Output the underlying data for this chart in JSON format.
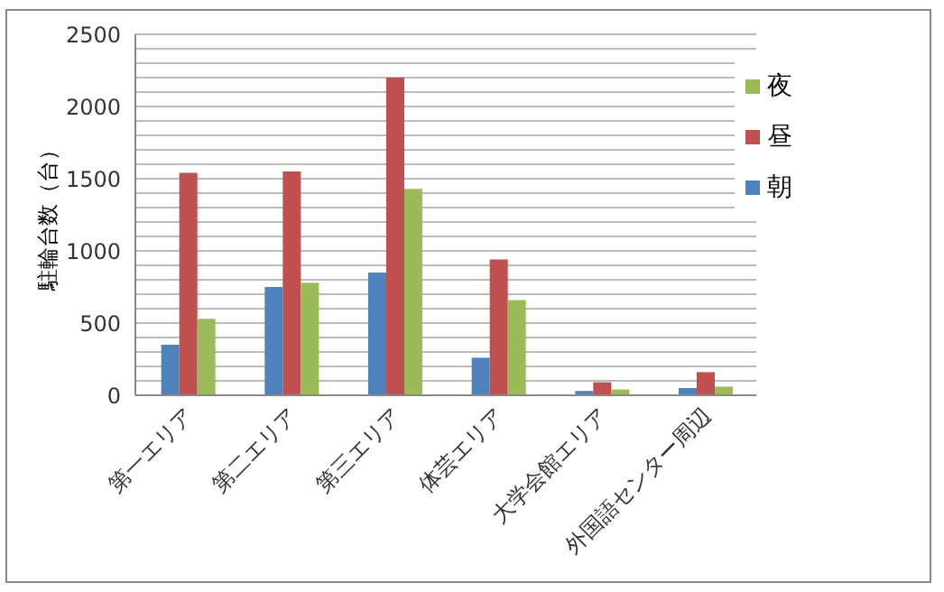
{
  "chart_data": {
    "type": "bar",
    "ylabel": "駐輪台数（台）",
    "categories": [
      "第一エリア",
      "第二エリア",
      "第三エリア",
      "体芸エリア",
      "大学会館エリア",
      "外国語センター周辺"
    ],
    "series": [
      {
        "name": "朝",
        "color": "#4f81bd",
        "values": [
          350,
          750,
          850,
          260,
          30,
          50
        ]
      },
      {
        "name": "昼",
        "color": "#c0504d",
        "values": [
          1540,
          1550,
          2200,
          940,
          90,
          160
        ]
      },
      {
        "name": "夜",
        "color": "#9bbb59",
        "values": [
          530,
          780,
          1430,
          660,
          40,
          60
        ]
      }
    ],
    "ylim": [
      0,
      2500
    ],
    "yticks": [
      0,
      {
        "value": 100,
        "label": null
      },
      {
        "value": 200,
        "label": null
      },
      {
        "value": 300,
        "label": null
      },
      {
        "value": 400,
        "label": null
      },
      500,
      {
        "value": 600,
        "label": null
      },
      {
        "value": 700,
        "label": null
      },
      {
        "value": 800,
        "label": null
      },
      {
        "value": 900,
        "label": null
      },
      1000,
      {
        "value": 1100,
        "label": null
      },
      {
        "value": 1200,
        "label": null
      },
      {
        "value": 1300,
        "label": null
      },
      {
        "value": 1400,
        "label": null
      },
      1500,
      {
        "value": 1600,
        "label": null
      },
      {
        "value": 1700,
        "label": null
      },
      {
        "value": 1800,
        "label": null
      },
      {
        "value": 1900,
        "label": null
      },
      2000,
      {
        "value": 2100,
        "label": null
      },
      {
        "value": 2200,
        "label": null
      },
      {
        "value": 2300,
        "label": null
      },
      {
        "value": 2400,
        "label": null
      },
      2500
    ],
    "grid": "y",
    "legend": "top right"
  }
}
